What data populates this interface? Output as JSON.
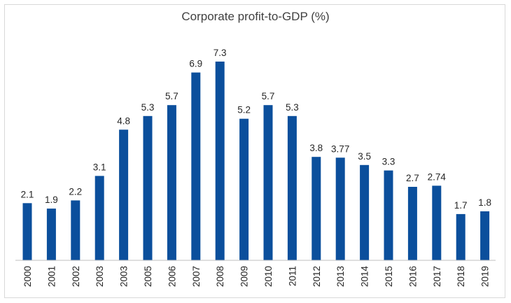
{
  "chart_data": {
    "type": "bar",
    "title": "Corporate profit-to-GDP (%)",
    "xlabel": "",
    "ylabel": "",
    "categories": [
      "2000",
      "2001",
      "2002",
      "2003",
      "2003",
      "2005",
      "2006",
      "2007",
      "2008",
      "2009",
      "2010",
      "2011",
      "2012",
      "2013",
      "2014",
      "2015",
      "2016",
      "2017",
      "2018",
      "2019"
    ],
    "values": [
      2.1,
      1.9,
      2.2,
      3.1,
      4.8,
      5.3,
      5.7,
      6.9,
      7.3,
      5.2,
      5.7,
      5.3,
      3.8,
      3.77,
      3.5,
      3.3,
      2.7,
      2.74,
      1.7,
      1.8
    ],
    "data_labels": [
      "2.1",
      "1.9",
      "2.2",
      "3.1",
      "4.8",
      "5.3",
      "5.7",
      "6.9",
      "7.3",
      "5.2",
      "5.7",
      "5.3",
      "3.8",
      "3.77",
      "3.5",
      "3.3",
      "2.7",
      "2.74",
      "1.7",
      "1.8"
    ],
    "ylim": [
      0,
      7.3
    ],
    "grid": false,
    "legend": "none",
    "bar_color": "#0b4f9c",
    "axis_color": "#bfbfbf"
  }
}
